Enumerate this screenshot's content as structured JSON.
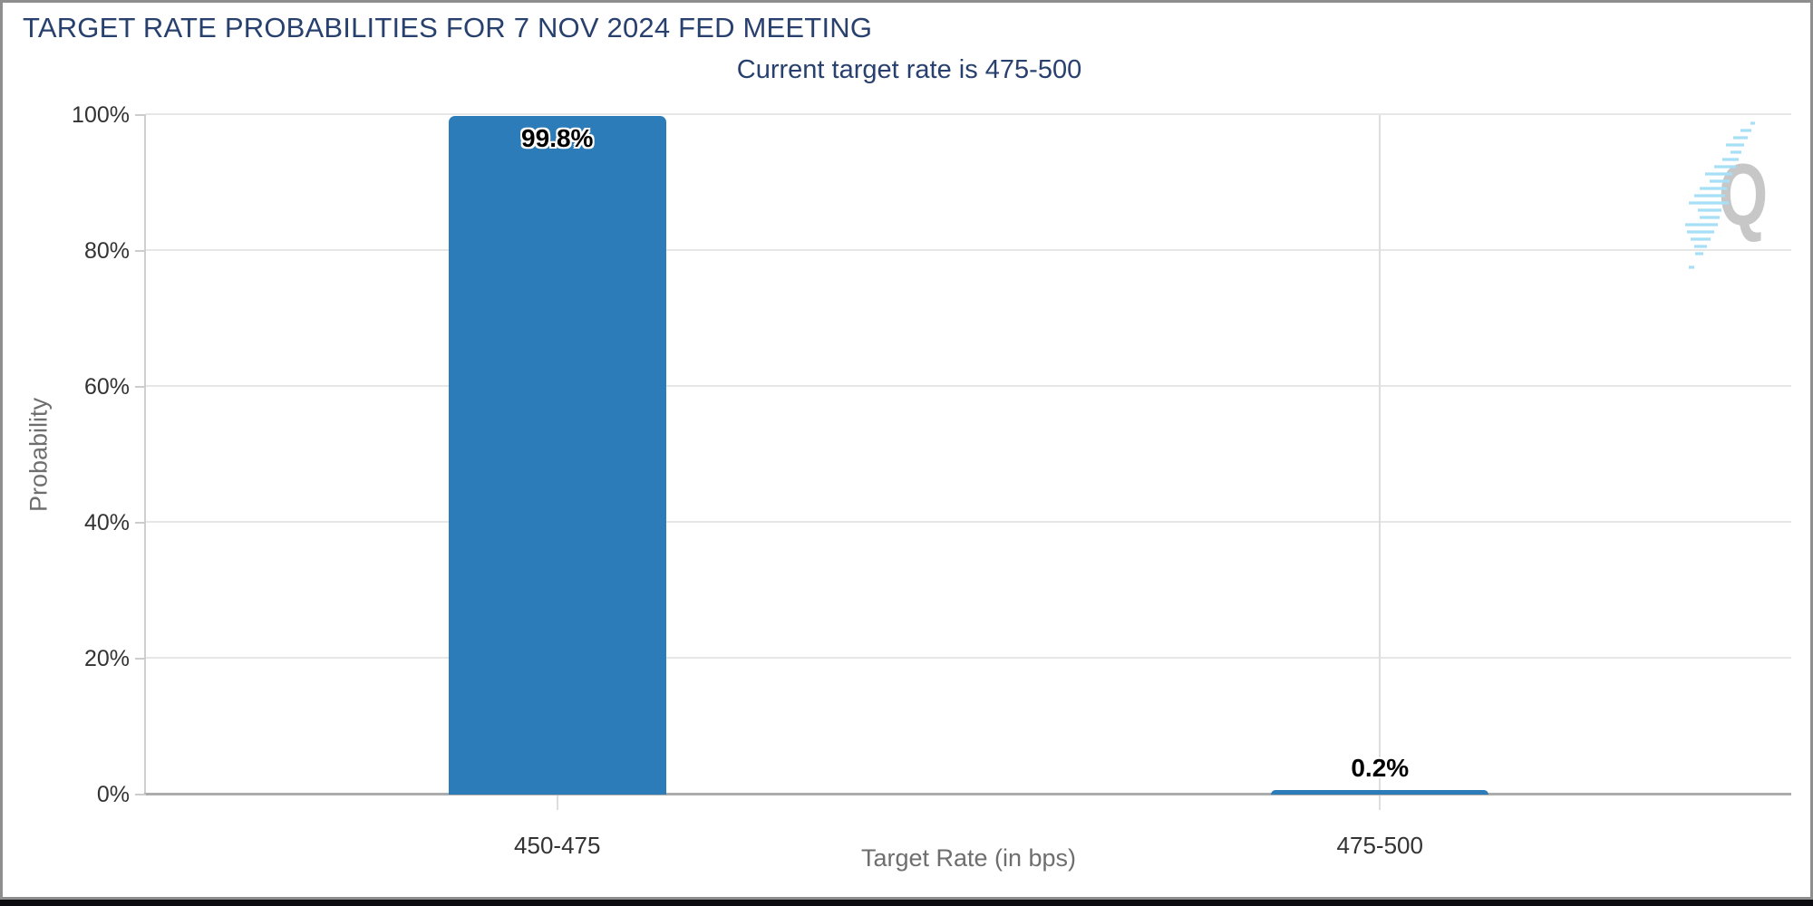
{
  "page": {
    "title": "TARGET RATE PROBABILITIES FOR 7 NOV 2024 FED MEETING",
    "subtitle": "Current target rate is 475-500"
  },
  "watermark": {
    "letter": "Q"
  },
  "chart_data": {
    "type": "bar",
    "title": "TARGET RATE PROBABILITIES FOR 7 NOV 2024 FED MEETING",
    "subtitle": "Current target rate is 475-500",
    "categories": [
      "450-475",
      "475-500"
    ],
    "values": [
      99.8,
      0.2
    ],
    "value_labels": [
      "99.8%",
      "0.2%"
    ],
    "xlabel": "Target Rate (in bps)",
    "ylabel": "Probability",
    "ylim": [
      0,
      100
    ],
    "ytick_interval": 20,
    "ytick_labels": [
      "0%",
      "20%",
      "40%",
      "60%",
      "80%",
      "100%"
    ],
    "grid": true,
    "legend_position": "none",
    "bar_color": "#2b7cb8",
    "crosshair_on_category": "475-500"
  },
  "colors": {
    "title_navy": "#28406e",
    "bar_blue": "#2b7cb8",
    "gridline": "#e6e6e6",
    "axis_baseline": "#acacac",
    "tick_label_text": "#333333",
    "axis_title_text": "#6e6e6e",
    "frame_border": "#8e8e8e",
    "footer_strip": "#0c0c10",
    "logo_gray": "#c7c7c7",
    "logo_light_blue": "#a7dff6"
  }
}
